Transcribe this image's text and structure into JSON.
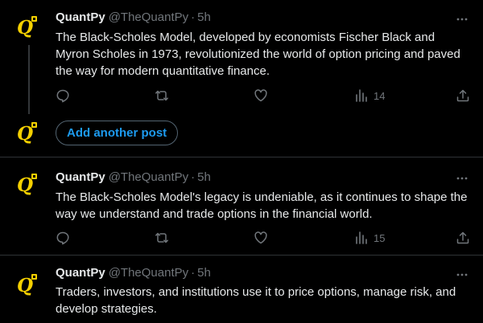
{
  "posts": [
    {
      "author_name": "QuantPy",
      "author_handle": "@TheQuantPy",
      "time_sep": "·",
      "time": "5h",
      "text": "The Black-Scholes Model, developed by economists Fischer Black and Myron Scholes in 1973, revolutionized the world of option pricing and paved the way for modern quantitative finance.",
      "views": "14"
    },
    {
      "author_name": "QuantPy",
      "author_handle": "@TheQuantPy",
      "time_sep": "·",
      "time": "5h",
      "text": "The Black-Scholes Model's legacy is undeniable, as it continues to shape the way we understand and trade options in the financial world.",
      "views": "15"
    },
    {
      "author_name": "QuantPy",
      "author_handle": "@TheQuantPy",
      "time_sep": "·",
      "time": "5h",
      "text": "Traders, investors, and institutions use it to price options, manage risk, and develop strategies."
    }
  ],
  "composer": {
    "add_another_label": "Add another post"
  },
  "avatar_letter": "Q",
  "colors": {
    "background": "#000000",
    "text_primary": "#e7e9ea",
    "text_secondary": "#71767b",
    "accent": "#1d9bf0",
    "avatar_yellow": "#f5d000",
    "divider": "#2f3336"
  },
  "icons": [
    "reply-icon",
    "repost-icon",
    "like-icon",
    "views-icon",
    "share-icon",
    "more-icon"
  ]
}
